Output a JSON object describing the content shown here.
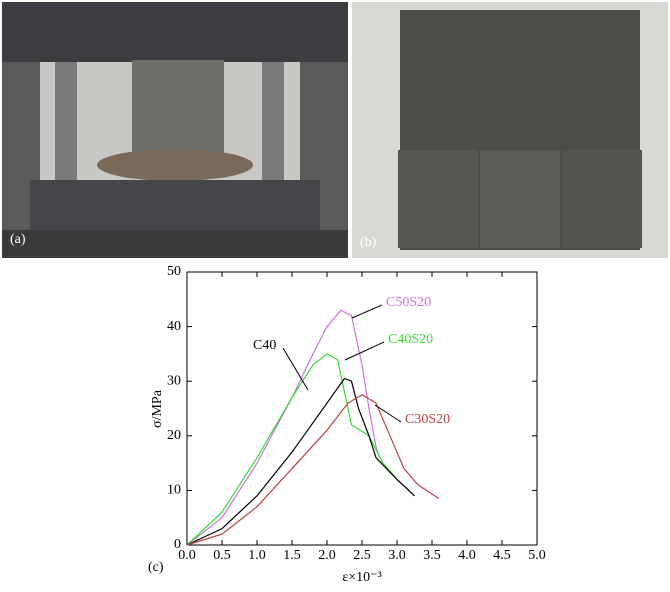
{
  "panel_labels": [
    "(a)",
    "(b)",
    "(c)"
  ],
  "chart_data": {
    "type": "line",
    "xlabel": "ε×10⁻³",
    "ylabel": "σ/MPa",
    "xlim": [
      0,
      5
    ],
    "ylim": [
      0,
      50
    ],
    "xticks": [
      {
        "value": 0,
        "label": "0.0"
      },
      0.5,
      {
        "value": 1,
        "label": "1.0"
      },
      1.5,
      {
        "value": 2,
        "label": "2.0"
      },
      2.5,
      {
        "value": 3,
        "label": "3.0"
      },
      3.5,
      {
        "value": 4,
        "label": "4.0"
      },
      4.5,
      {
        "value": 5,
        "label": "5.0"
      }
    ],
    "yticks": [
      0,
      10,
      20,
      30,
      40,
      50
    ],
    "series": [
      {
        "name": "C50S20",
        "color": "#d070e0",
        "x": [
          0,
          0.5,
          1.0,
          1.5,
          1.8,
          2.0,
          2.2,
          2.35,
          2.5,
          2.6,
          2.7,
          2.75
        ],
        "values": [
          0,
          5,
          15,
          27,
          35,
          40,
          43,
          42,
          33,
          25,
          18,
          16
        ]
      },
      {
        "name": "C40S20",
        "color": "#33dd33",
        "x": [
          0,
          0.5,
          1.0,
          1.5,
          1.8,
          2.0,
          2.15,
          2.25,
          2.35,
          2.6,
          2.8,
          3.0,
          3.25
        ],
        "values": [
          0,
          6,
          16,
          27,
          33,
          35,
          34,
          28,
          22,
          20,
          15,
          12,
          9
        ]
      },
      {
        "name": "C40",
        "color": "#000000",
        "x": [
          0,
          0.5,
          1.0,
          1.5,
          2.0,
          2.25,
          2.35,
          2.45,
          2.6,
          2.7,
          3.0,
          3.25
        ],
        "values": [
          0,
          3,
          9,
          17,
          26,
          30.5,
          30,
          25,
          20,
          16,
          12,
          9
        ]
      },
      {
        "name": "C30S20",
        "color": "#c04040",
        "x": [
          0,
          0.5,
          1.0,
          1.5,
          2.0,
          2.3,
          2.5,
          2.7,
          2.9,
          3.1,
          3.3,
          3.6
        ],
        "values": [
          0,
          2,
          7,
          14,
          21,
          26,
          27.5,
          26,
          20,
          14,
          11,
          8.5
        ]
      }
    ]
  }
}
